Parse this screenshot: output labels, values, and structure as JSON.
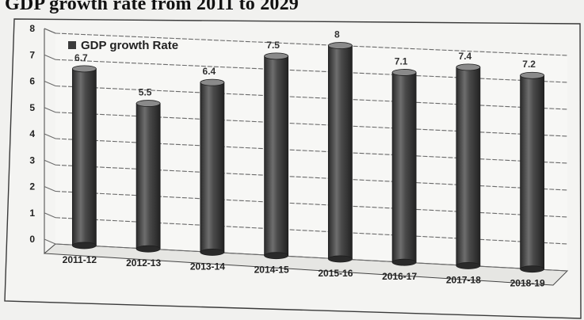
{
  "page": {
    "title": "GDP growth rate from 2011 to 2029"
  },
  "chart_data": {
    "type": "bar",
    "title": "GDP growth rate from 2011 to 2029",
    "xlabel": "",
    "ylabel": "",
    "categories": [
      "2011-12",
      "2012-13",
      "2013-14",
      "2014-15",
      "2015-16",
      "2016-17",
      "2017-18",
      "2018-19"
    ],
    "series": [
      {
        "name": "GDP growth Rate",
        "values": [
          6.7,
          5.5,
          6.4,
          7.5,
          8,
          7.1,
          7.4,
          7.2
        ],
        "labels": [
          "6.7",
          "5.5",
          "6.4",
          "7.5",
          "8",
          "7.1",
          "7.4",
          "7.2"
        ]
      }
    ],
    "ylim": [
      0,
      8
    ],
    "yticks": [
      0,
      1,
      2,
      3,
      4,
      5,
      6,
      7,
      8
    ],
    "grid": true,
    "legend": "top-left",
    "colors": {
      "bar": "#3b3b3b",
      "bar_highlight": "#8a8a8a",
      "grid": "#6a6a6a",
      "frame": "#2a2a2a"
    }
  }
}
